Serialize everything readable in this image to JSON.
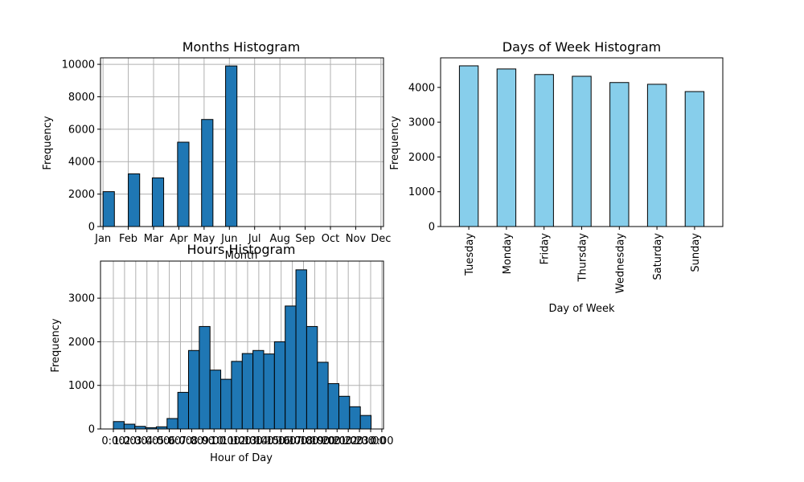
{
  "chart_data": [
    {
      "id": "months",
      "type": "bar",
      "title": "Months Histogram",
      "xlabel": "Month",
      "ylabel": "Frequency",
      "grid": true,
      "xlim": [
        0.9,
        12.1
      ],
      "ylim": [
        0,
        10400
      ],
      "xticks": [
        {
          "value": 1,
          "label": "Jan"
        },
        {
          "value": 2,
          "label": "Feb"
        },
        {
          "value": 3,
          "label": "Mar"
        },
        {
          "value": 4,
          "label": "Apr"
        },
        {
          "value": 5,
          "label": "May"
        },
        {
          "value": 6,
          "label": "Jun"
        },
        {
          "value": 7,
          "label": "Jul"
        },
        {
          "value": 8,
          "label": "Aug"
        },
        {
          "value": 9,
          "label": "Sep"
        },
        {
          "value": 10,
          "label": "Oct"
        },
        {
          "value": 11,
          "label": "Nov"
        },
        {
          "value": 12,
          "label": "Dec"
        }
      ],
      "yticks": [
        0,
        2000,
        4000,
        6000,
        8000,
        10000
      ],
      "bin_edges": [
        1,
        1.45,
        2.0,
        2.45,
        2.95,
        3.4,
        3.95,
        4.4,
        4.9,
        5.35,
        5.85,
        6.3
      ],
      "counts": [
        2150,
        0,
        3250,
        0,
        3000,
        0,
        5200,
        0,
        6600,
        0,
        9900
      ],
      "bar_color": "#1f77b4",
      "edge_color": "#000000"
    },
    {
      "id": "days",
      "type": "bar",
      "title": "Days of Week Histogram",
      "xlabel": "Day of Week",
      "ylabel": "Frequency",
      "grid": false,
      "ylim": [
        0,
        4850
      ],
      "yticks": [
        0,
        1000,
        2000,
        3000,
        4000
      ],
      "categories": [
        "Tuesday",
        "Monday",
        "Friday",
        "Thursday",
        "Wednesday",
        "Saturday",
        "Sunday"
      ],
      "values": [
        4620,
        4530,
        4370,
        4320,
        4140,
        4090,
        3880
      ],
      "bar_color": "#87ceeb",
      "edge_color": "#000000"
    },
    {
      "id": "hours",
      "type": "bar",
      "title": "Hours Histogram",
      "xlabel": "Hour of Day",
      "ylabel": "Frequency",
      "grid": true,
      "xlim": [
        -1.15,
        24.15
      ],
      "ylim": [
        0,
        3850
      ],
      "yticks": [
        0,
        1000,
        2000,
        3000
      ],
      "xtick_labels": [
        "0:00",
        "1:00",
        "2:00",
        "3:00",
        "4:00",
        "5:00",
        "6:00",
        "7:00",
        "8:00",
        "9:00",
        "10:00",
        "11:00",
        "12:00",
        "13:00",
        "14:00",
        "15:00",
        "16:00",
        "17:00",
        "18:00",
        "19:00",
        "20:00",
        "21:00",
        "22:00",
        "23:00",
        "0:00"
      ],
      "bin_edges": [
        0,
        0.96,
        1.92,
        2.88,
        3.84,
        4.8,
        5.76,
        6.72,
        7.68,
        8.64,
        9.6,
        10.56,
        11.52,
        12.48,
        13.44,
        14.4,
        15.36,
        16.32,
        17.28,
        18.24,
        19.2,
        20.16,
        21.12,
        22.08,
        23.04,
        24
      ],
      "counts": [
        170,
        110,
        60,
        30,
        50,
        240,
        840,
        1800,
        2350,
        1350,
        1140,
        1550,
        1730,
        1800,
        1720,
        2000,
        2820,
        3650,
        2350,
        1530,
        1040,
        750,
        510,
        310,
        0
      ],
      "bar_color": "#1f77b4",
      "edge_color": "#000000"
    }
  ]
}
